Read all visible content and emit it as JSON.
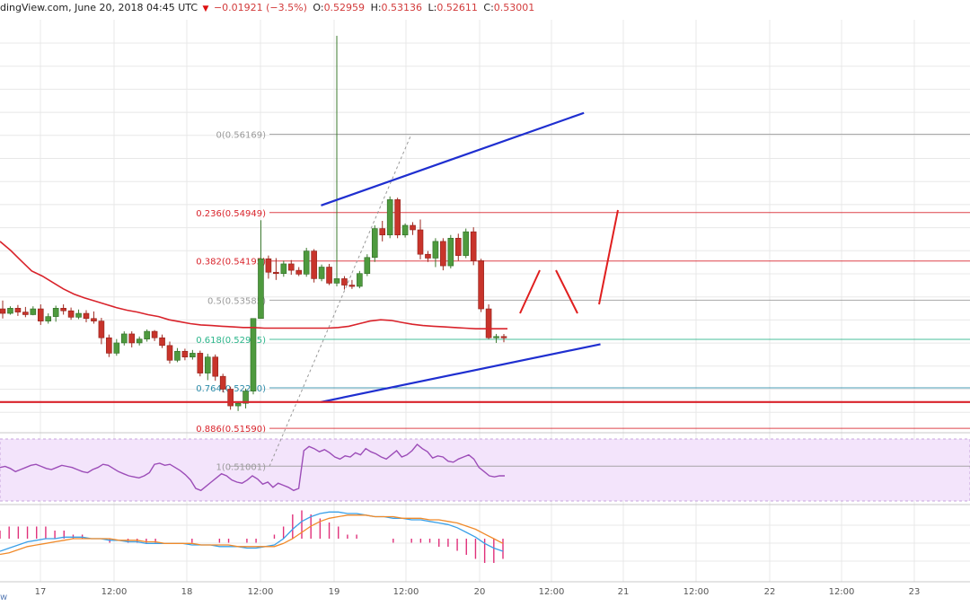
{
  "header": {
    "source": "dingView.com, June 20, 2018 04:45 UTC",
    "change": "−0.01921 (−3.5%)",
    "o_label": "O:",
    "o_value": "0.52959",
    "h_label": "H:",
    "h_value": "0.53136",
    "l_label": "L:",
    "l_value": "0.52611",
    "c_label": "C:",
    "c_value": "0.53001"
  },
  "watermark": "w",
  "colors": {
    "bull": "#4e9a3e",
    "bear": "#c8342b",
    "grid": "#e8e8e8",
    "ma": "#d9232b",
    "channel": "#1f2fd0",
    "support": "#d9232b",
    "rsi": "#9c4db8",
    "rsi_band": "#f3e4fb",
    "macd": "#3aa0e8",
    "signal": "#f08a2a",
    "hist": "#e0307a",
    "fib_grey": "#9a9a9a",
    "fib_red": "#d9232b",
    "fib_green": "#2ab58a",
    "fib_teal": "#2a8aa8"
  },
  "chart_data": {
    "type": "candlestick",
    "x_ticks": [
      "17",
      "12:00",
      "18",
      "12:00",
      "19",
      "12:00",
      "20",
      "12:00",
      "21",
      "12:00",
      "22",
      "12:00",
      "23"
    ],
    "ylim": [
      0.5155,
      0.5795
    ],
    "candles": [
      [
        0.5345,
        0.5358,
        0.533,
        0.5338
      ],
      [
        0.5338,
        0.5349,
        0.5336,
        0.5346
      ],
      [
        0.5346,
        0.5351,
        0.5334,
        0.534
      ],
      [
        0.534,
        0.5348,
        0.5332,
        0.5336
      ],
      [
        0.5336,
        0.5349,
        0.5335,
        0.5345
      ],
      [
        0.5345,
        0.5352,
        0.532,
        0.5326
      ],
      [
        0.5326,
        0.5338,
        0.5322,
        0.5333
      ],
      [
        0.5333,
        0.535,
        0.5325,
        0.5346
      ],
      [
        0.5346,
        0.5352,
        0.5336,
        0.5342
      ],
      [
        0.5342,
        0.5347,
        0.5328,
        0.5332
      ],
      [
        0.5332,
        0.5344,
        0.5329,
        0.5338
      ],
      [
        0.5338,
        0.5343,
        0.5324,
        0.533
      ],
      [
        0.533,
        0.5341,
        0.5322,
        0.5326
      ],
      [
        0.5326,
        0.5331,
        0.529,
        0.53
      ],
      [
        0.53,
        0.5305,
        0.527,
        0.5276
      ],
      [
        0.5276,
        0.5298,
        0.5272,
        0.5292
      ],
      [
        0.5292,
        0.531,
        0.5288,
        0.5306
      ],
      [
        0.5306,
        0.531,
        0.5285,
        0.5292
      ],
      [
        0.5292,
        0.5302,
        0.5288,
        0.5298
      ],
      [
        0.5298,
        0.5313,
        0.5294,
        0.531
      ],
      [
        0.531,
        0.5312,
        0.5295,
        0.53
      ],
      [
        0.53,
        0.5305,
        0.5284,
        0.5288
      ],
      [
        0.5288,
        0.5294,
        0.526,
        0.5265
      ],
      [
        0.5265,
        0.5284,
        0.5262,
        0.5279
      ],
      [
        0.5279,
        0.5283,
        0.5265,
        0.527
      ],
      [
        0.527,
        0.5281,
        0.5266,
        0.5276
      ],
      [
        0.5276,
        0.528,
        0.524,
        0.5245
      ],
      [
        0.5245,
        0.5275,
        0.5234,
        0.527
      ],
      [
        0.527,
        0.5274,
        0.5233,
        0.524
      ],
      [
        0.524,
        0.5244,
        0.5215,
        0.522
      ],
      [
        0.522,
        0.5224,
        0.5188,
        0.5194
      ],
      [
        0.5194,
        0.52,
        0.5186,
        0.5198
      ],
      [
        0.5198,
        0.5221,
        0.519,
        0.5217
      ],
      [
        0.5217,
        0.533,
        0.5212,
        0.533
      ],
      [
        0.533,
        0.5483,
        0.533,
        0.5423
      ],
      [
        0.5423,
        0.5428,
        0.5392,
        0.5402
      ],
      [
        0.5402,
        0.5424,
        0.539,
        0.54
      ],
      [
        0.54,
        0.542,
        0.5395,
        0.5415
      ],
      [
        0.5415,
        0.5421,
        0.5398,
        0.5405
      ],
      [
        0.5405,
        0.541,
        0.5396,
        0.5399
      ],
      [
        0.5399,
        0.544,
        0.5395,
        0.5435
      ],
      [
        0.5435,
        0.5438,
        0.5386,
        0.5392
      ],
      [
        0.5392,
        0.5414,
        0.5388,
        0.541
      ],
      [
        0.541,
        0.5415,
        0.5382,
        0.5385
      ],
      [
        0.5385,
        0.577,
        0.538,
        0.5392
      ],
      [
        0.5392,
        0.5396,
        0.5375,
        0.5382
      ],
      [
        0.5382,
        0.539,
        0.5376,
        0.538
      ],
      [
        0.538,
        0.5404,
        0.5377,
        0.54
      ],
      [
        0.54,
        0.543,
        0.5396,
        0.5425
      ],
      [
        0.5425,
        0.5475,
        0.5418,
        0.547
      ],
      [
        0.547,
        0.5482,
        0.545,
        0.546
      ],
      [
        0.546,
        0.552,
        0.5455,
        0.5515
      ],
      [
        0.5515,
        0.5518,
        0.5455,
        0.546
      ],
      [
        0.546,
        0.5478,
        0.5456,
        0.5475
      ],
      [
        0.5475,
        0.548,
        0.546,
        0.5468
      ],
      [
        0.5468,
        0.5484,
        0.5422,
        0.543
      ],
      [
        0.543,
        0.5435,
        0.5418,
        0.5424
      ],
      [
        0.5424,
        0.5455,
        0.541,
        0.545
      ],
      [
        0.545,
        0.5455,
        0.5405,
        0.5412
      ],
      [
        0.5412,
        0.546,
        0.5408,
        0.5455
      ],
      [
        0.5455,
        0.5462,
        0.542,
        0.5428
      ],
      [
        0.5428,
        0.547,
        0.5424,
        0.5465
      ],
      [
        0.5465,
        0.5472,
        0.5413,
        0.542
      ],
      [
        0.542,
        0.5423,
        0.534,
        0.5345
      ],
      [
        0.5345,
        0.5352,
        0.5298,
        0.53
      ],
      [
        0.53,
        0.5306,
        0.5292,
        0.5302
      ],
      [
        0.5302,
        0.5306,
        0.5293,
        0.53
      ]
    ],
    "moving_average": [
      0.545,
      0.5436,
      0.542,
      0.5404,
      0.5396,
      0.5386,
      0.5376,
      0.5368,
      0.5362,
      0.5357,
      0.5352,
      0.5347,
      0.5343,
      0.534,
      0.5336,
      0.5333,
      0.5328,
      0.5325,
      0.5322,
      0.532,
      0.5319,
      0.5318,
      0.5317,
      0.5316,
      0.5316,
      0.5315,
      0.5315,
      0.5315,
      0.5315,
      0.5315,
      0.5315,
      0.5315,
      0.5316,
      0.5318,
      0.5322,
      0.5326,
      0.5328,
      0.5327,
      0.5324,
      0.5321,
      0.5319,
      0.5318,
      0.5317,
      0.5316,
      0.5315,
      0.5314,
      0.5314,
      0.5314,
      0.5314
    ],
    "fibonacci": [
      {
        "label": "0(0.56169)",
        "value": 0.56169,
        "color": "grey"
      },
      {
        "label": "0.236(0.54949)",
        "value": 0.54949,
        "color": "red"
      },
      {
        "label": "0.382(0.54195)",
        "value": 0.54195,
        "color": "red"
      },
      {
        "label": "0.5(0.53585)",
        "value": 0.53585,
        "color": "grey"
      },
      {
        "label": "0.618(0.52975)",
        "value": 0.52975,
        "color": "green"
      },
      {
        "label": "0.764(0.52220)",
        "value": 0.5222,
        "color": "teal"
      },
      {
        "label": "0.886(0.51590)",
        "value": 0.5159,
        "color": "red"
      },
      {
        "label": "1(0.51001)",
        "value": 0.51001,
        "color": "grey"
      }
    ],
    "support_level": 0.52,
    "channel_upper": {
      "from": [
        0.331,
        0.5506
      ],
      "to": [
        0.602,
        0.565
      ]
    },
    "channel_lower": {
      "from": [
        0.331,
        0.52
      ],
      "to": [
        0.619,
        0.529
      ]
    },
    "rsi": [
      52,
      53,
      51,
      48,
      50,
      52,
      54,
      55,
      53,
      51,
      50,
      52,
      54,
      53,
      52,
      50,
      48,
      47,
      50,
      52,
      55,
      54,
      51,
      48,
      46,
      44,
      43,
      42,
      44,
      47,
      55,
      56,
      54,
      55,
      52,
      49,
      45,
      40,
      32,
      30,
      34,
      38,
      42,
      46,
      44,
      40,
      38,
      37,
      40,
      44,
      41,
      36,
      38,
      33,
      37,
      35,
      33,
      30,
      32,
      68,
      72,
      70,
      67,
      69,
      66,
      62,
      60,
      63,
      62,
      66,
      64,
      70,
      67,
      65,
      62,
      60,
      64,
      68,
      62,
      64,
      68,
      74,
      70,
      67,
      61,
      63,
      62,
      58,
      57,
      60,
      62,
      64,
      60,
      52,
      48,
      44,
      43,
      44,
      44
    ],
    "macd": [
      -8,
      -6,
      -4,
      -2,
      -1,
      0,
      0,
      1,
      1,
      1,
      0,
      0,
      -1,
      -1,
      -2,
      -2,
      -3,
      -3,
      -3,
      -3,
      -3,
      -4,
      -4,
      -4,
      -5,
      -5,
      -5,
      -6,
      -6,
      -5,
      -4,
      0,
      6,
      11,
      14,
      16,
      17,
      17,
      16,
      16,
      15,
      14,
      14,
      13,
      13,
      12,
      12,
      11,
      10,
      9,
      7,
      4,
      1,
      -3,
      -6,
      -8
    ],
    "signal": [
      -10,
      -9,
      -7,
      -5,
      -4,
      -3,
      -2,
      -1,
      0,
      0,
      0,
      0,
      0,
      -1,
      -1,
      -1,
      -2,
      -2,
      -3,
      -3,
      -3,
      -3,
      -4,
      -4,
      -4,
      -4,
      -5,
      -5,
      -5,
      -5,
      -5,
      -3,
      0,
      4,
      8,
      11,
      13,
      14,
      15,
      15,
      15,
      14,
      14,
      14,
      13,
      13,
      13,
      12,
      12,
      11,
      10,
      8,
      6,
      3,
      0,
      -3
    ]
  },
  "x_labels": [
    "17",
    "12:00",
    "18",
    "12:00",
    "19",
    "12:00",
    "20",
    "12:00",
    "21",
    "12:00",
    "22",
    "12:00",
    "23"
  ]
}
